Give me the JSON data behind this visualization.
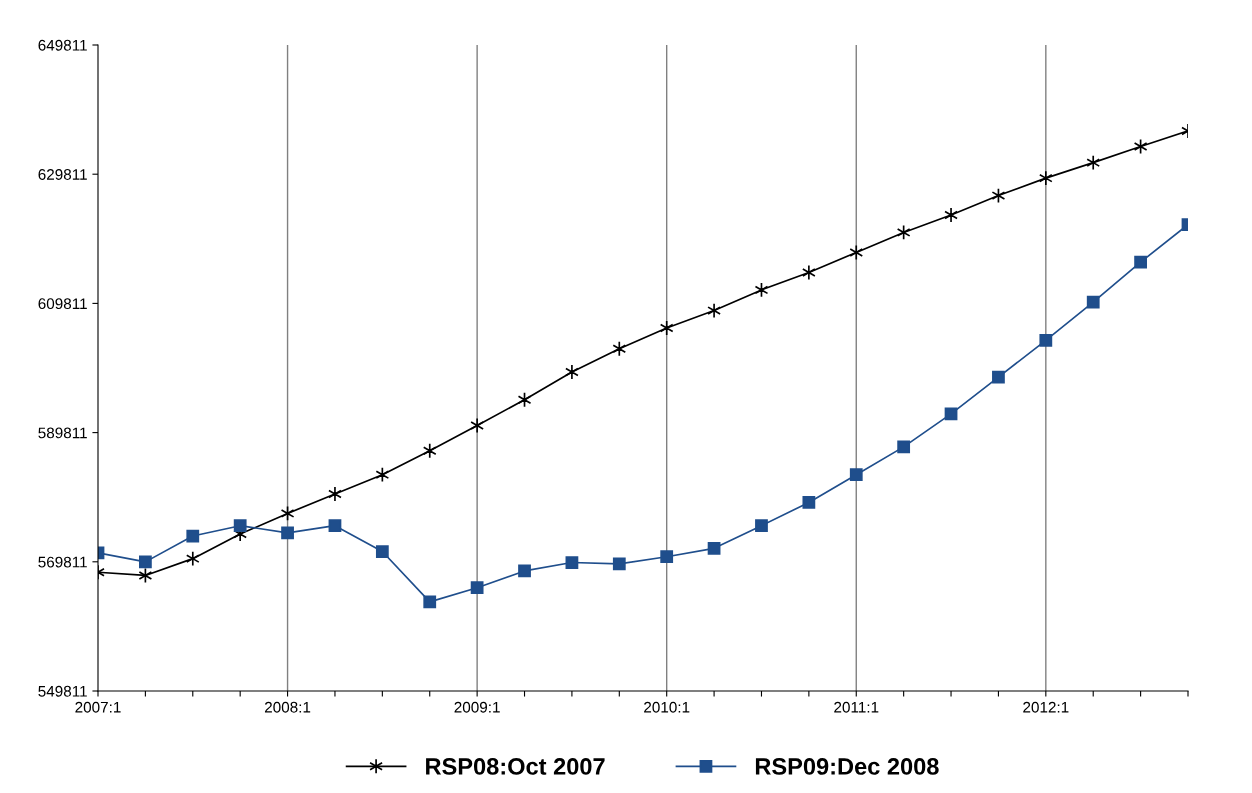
{
  "chart_data": {
    "type": "line",
    "categories": [
      "2007:1",
      null,
      null,
      null,
      "2008:1",
      null,
      null,
      null,
      "2009:1",
      null,
      null,
      null,
      "2010:1",
      null,
      null,
      null,
      "2011:1",
      null,
      null,
      null,
      "2012:1",
      null,
      null,
      null
    ],
    "series": [
      {
        "name": "RSP08:Oct 2007",
        "color": "#000000",
        "marker": "cross",
        "values": [
          568200,
          567700,
          570300,
          574100,
          577300,
          580300,
          583300,
          587000,
          590900,
          594900,
          599200,
          602800,
          606000,
          608700,
          611900,
          614600,
          617700,
          620800,
          623500,
          626500,
          629200,
          631600,
          634100,
          636500
        ]
      },
      {
        "name": "RSP09:Dec 2008",
        "color": "#1f4e8c",
        "marker": "square",
        "values": [
          571200,
          569800,
          573800,
          575400,
          574300,
          575400,
          571400,
          563600,
          565800,
          568400,
          569700,
          569500,
          570600,
          571900,
          575400,
          579000,
          583300,
          587600,
          592700,
          598400,
          604100,
          610000,
          616200,
          622000
        ]
      }
    ],
    "ylim": [
      549811,
      649811
    ],
    "yticks": [
      549811,
      569811,
      589811,
      609811,
      629811,
      649811
    ],
    "grid": "x",
    "legend": "bottom",
    "line_style": "solid"
  }
}
